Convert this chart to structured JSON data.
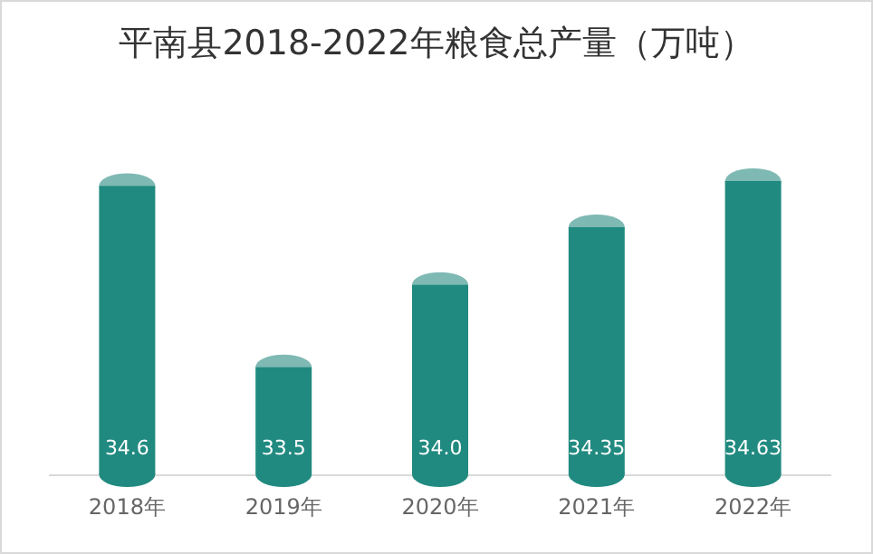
{
  "chart_data": {
    "type": "bar",
    "title": "平南县2018-2022年粮食总产量（万吨）",
    "categories": [
      "2018年",
      "2019年",
      "2020年",
      "2021年",
      "2022年"
    ],
    "values": [
      34.6,
      33.5,
      34.0,
      34.35,
      34.63
    ],
    "color": "#218a80",
    "ylim": [
      32.85,
      34.63
    ],
    "value_labels": [
      "34.6",
      "33.5",
      "34.0",
      "34.35",
      "34.63"
    ]
  }
}
